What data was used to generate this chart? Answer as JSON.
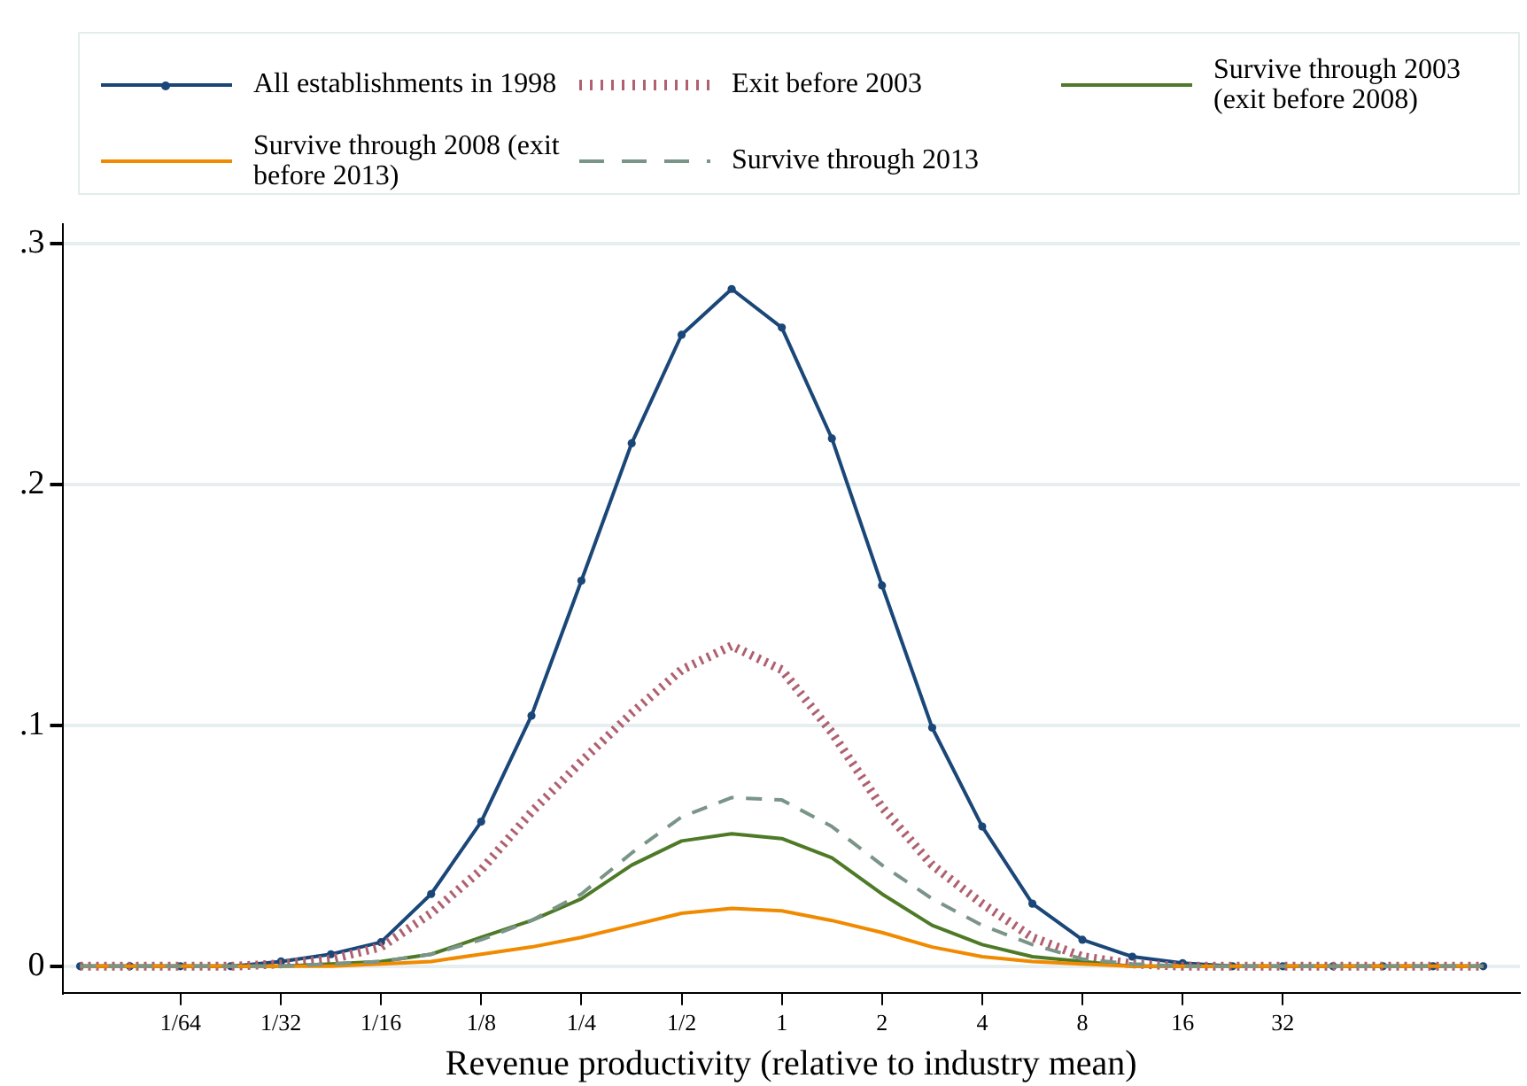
{
  "chart_data": {
    "type": "line",
    "xlabel": "Revenue productivity (relative to industry mean)",
    "log": "x",
    "grid": "y",
    "legend": "top",
    "x": [
      0.0078,
      0.011,
      0.0156,
      0.0221,
      0.0313,
      0.0442,
      0.0625,
      0.0884,
      0.125,
      0.177,
      0.25,
      0.354,
      0.5,
      0.707,
      1,
      1.414,
      2,
      2.83,
      4,
      5.66,
      8,
      11.3,
      16,
      22.6,
      32,
      45.3,
      64,
      90.5,
      128
    ],
    "xlim": [
      0.0069,
      165
    ],
    "ylim": [
      -0.011,
      0.308
    ],
    "xticks": [
      {
        "value": 0.015625,
        "label": "1/64"
      },
      {
        "value": 0.03125,
        "label": "1/32"
      },
      {
        "value": 0.0625,
        "label": "1/16"
      },
      {
        "value": 0.125,
        "label": "1/8"
      },
      {
        "value": 0.25,
        "label": "1/4"
      },
      {
        "value": 0.5,
        "label": "1/2"
      },
      1,
      2,
      4,
      8,
      16,
      32
    ],
    "yticks": [
      0,
      {
        "value": 0.1,
        "label": ".1"
      },
      {
        "value": 0.2,
        "label": ".2"
      },
      {
        "value": 0.3,
        "label": ".3"
      }
    ],
    "series": [
      {
        "name": "All establishments in 1998",
        "color": "#1a4778",
        "marker": "circle",
        "line_style": "solid",
        "values": [
          0,
          0,
          0,
          0,
          0.002,
          0.005,
          0.01,
          0.03,
          0.06,
          0.104,
          0.16,
          0.217,
          0.262,
          0.281,
          0.265,
          0.219,
          0.158,
          0.099,
          0.058,
          0.026,
          0.011,
          0.004,
          0.0013,
          0,
          0,
          0,
          0,
          0,
          0
        ]
      },
      {
        "name": "Exit before 2003",
        "color": "#b06070",
        "marker": "none",
        "line_style": "dotted",
        "values": [
          0,
          0,
          0,
          0,
          0.001,
          0.003,
          0.008,
          0.022,
          0.04,
          0.064,
          0.085,
          0.105,
          0.123,
          0.133,
          0.123,
          0.097,
          0.066,
          0.042,
          0.026,
          0.012,
          0.004,
          0.001,
          0,
          0,
          0,
          0,
          0,
          0,
          0
        ]
      },
      {
        "name": "Survive through 2003 (exit before 2008)",
        "color": "#4e7a27",
        "marker": "none",
        "line_style": "solid",
        "values": [
          0,
          0,
          0,
          0,
          0,
          0.001,
          0.002,
          0.005,
          0.012,
          0.019,
          0.028,
          0.042,
          0.052,
          0.055,
          0.053,
          0.045,
          0.03,
          0.017,
          0.009,
          0.004,
          0.002,
          0,
          0,
          0,
          0,
          0,
          0,
          0,
          0
        ]
      },
      {
        "name": "Survive through 2008 (exit before 2013)",
        "color": "#f08a00",
        "marker": "none",
        "line_style": "solid",
        "values": [
          0,
          0,
          0,
          0,
          0,
          0,
          0.001,
          0.002,
          0.005,
          0.008,
          0.012,
          0.017,
          0.022,
          0.024,
          0.023,
          0.019,
          0.014,
          0.008,
          0.004,
          0.002,
          0.001,
          0,
          0,
          0,
          0,
          0,
          0,
          0,
          0
        ]
      },
      {
        "name": "Survive through 2013",
        "color": "#7a9488",
        "marker": "none",
        "line_style": "dashed",
        "values": [
          0,
          0,
          0,
          0,
          0,
          0.001,
          0.002,
          0.005,
          0.011,
          0.019,
          0.03,
          0.047,
          0.062,
          0.07,
          0.069,
          0.058,
          0.042,
          0.028,
          0.017,
          0.009,
          0.003,
          0.001,
          0,
          0,
          0,
          0,
          0,
          0,
          0
        ]
      }
    ]
  }
}
